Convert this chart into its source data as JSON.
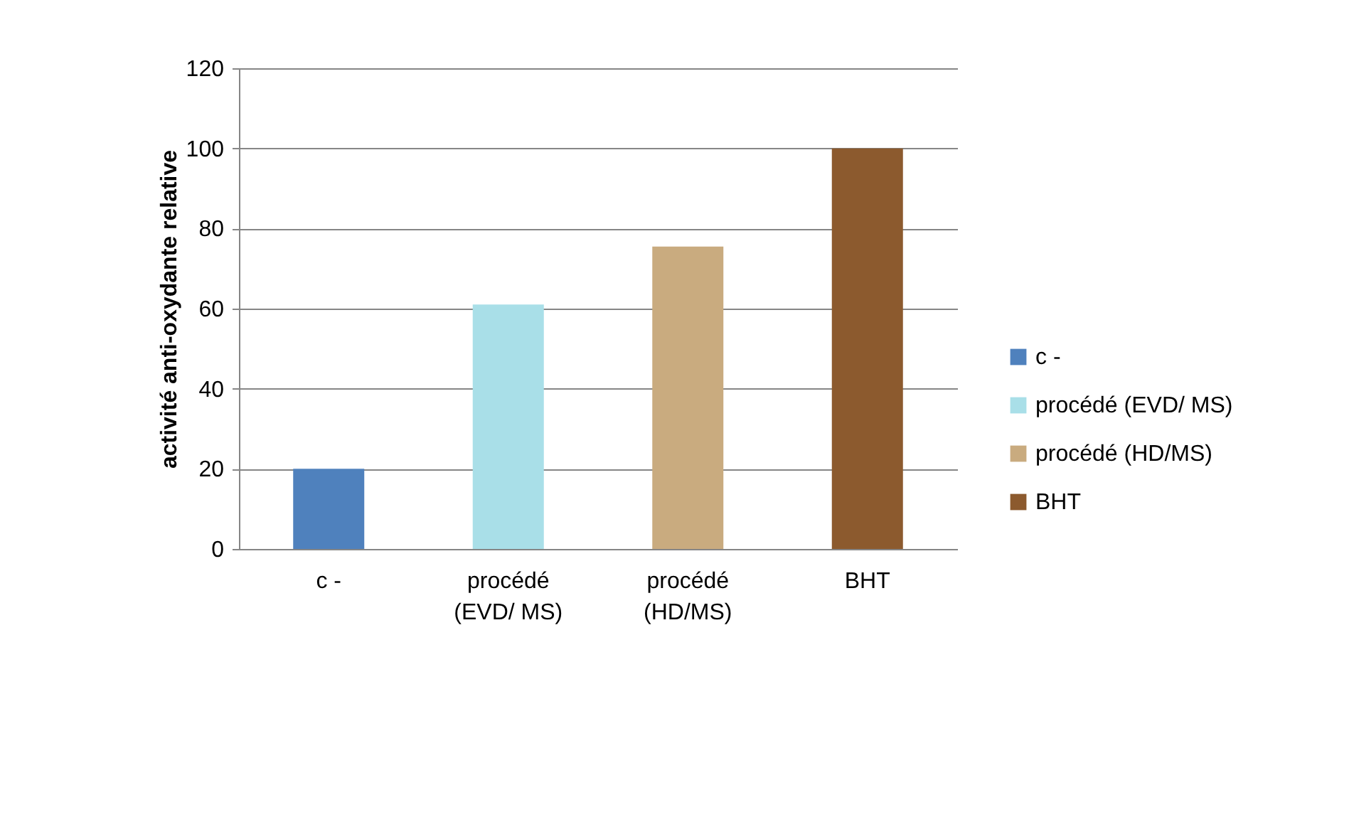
{
  "chart_data": {
    "type": "bar",
    "ylabel": "activité anti-oxydante relative",
    "categories": [
      "c -",
      "procédé (EVD/ MS)",
      "procédé (HD/MS)",
      "BHT"
    ],
    "series": [
      {
        "name": "c -",
        "color": "#4f81bd",
        "values": [
          20,
          null,
          null,
          null
        ]
      },
      {
        "name": "procédé (EVD/ MS)",
        "color": "#a9dfe8",
        "values": [
          null,
          61,
          null,
          null
        ]
      },
      {
        "name": "procédé (HD/MS)",
        "color": "#c9ab7f",
        "values": [
          null,
          null,
          75.5,
          null
        ]
      },
      {
        "name": "BHT",
        "color": "#8c5a2e",
        "values": [
          null,
          null,
          null,
          100
        ]
      }
    ],
    "ylim": [
      0,
      120
    ],
    "yticks": [
      0,
      20,
      40,
      60,
      80,
      100,
      120
    ],
    "grid": "y",
    "legend": "right"
  }
}
